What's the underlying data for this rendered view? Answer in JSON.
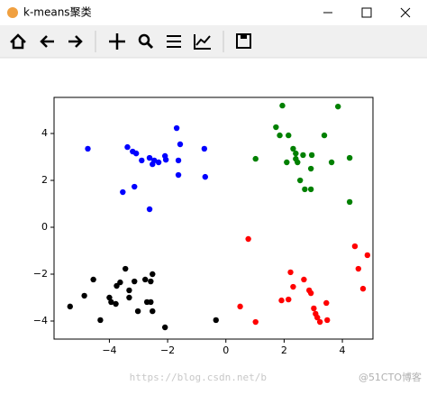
{
  "window": {
    "title": "k-means聚类"
  },
  "watermark": [
    "https://blog.csdn.net/b",
    "@51CTO博客"
  ],
  "chart_data": {
    "type": "scatter",
    "xlim": [
      -5.9,
      5.05
    ],
    "ylim": [
      -4.77,
      5.54
    ],
    "xticks": [
      {
        "value": -4,
        "label": "−4"
      },
      {
        "value": -2,
        "label": "−2"
      },
      0,
      2,
      4
    ],
    "yticks": [
      {
        "value": -4,
        "label": "−4"
      },
      {
        "value": -2,
        "label": "−2"
      },
      0,
      2,
      4
    ],
    "series": [
      {
        "color": "#0000ff",
        "x": [
          -4.74,
          -3.38,
          -3.2,
          -3.08,
          -2.89,
          -2.62,
          -2.46,
          -2.52,
          -2.31,
          -2.09,
          -2.06,
          -1.69,
          -1.57,
          -1.63,
          -1.63,
          -0.74,
          -0.71,
          -3.14,
          -3.54,
          -2.62
        ],
        "values": [
          3.35,
          3.42,
          3.23,
          3.15,
          2.85,
          2.96,
          2.85,
          2.69,
          2.77,
          3.04,
          2.88,
          4.23,
          3.54,
          2.85,
          2.23,
          3.35,
          2.15,
          1.73,
          1.5,
          0.77
        ]
      },
      {
        "color": "#008000",
        "x": [
          1.94,
          1.72,
          1.85,
          2.15,
          2.31,
          2.4,
          2.65,
          2.4,
          2.09,
          2.46,
          2.95,
          2.92,
          3.38,
          3.85,
          3.63,
          4.25,
          1.02,
          2.55,
          2.71,
          2.92,
          4.25
        ],
        "values": [
          5.19,
          4.27,
          3.92,
          3.92,
          3.35,
          3.15,
          3.08,
          2.92,
          2.77,
          2.77,
          3.08,
          2.5,
          3.92,
          5.15,
          2.77,
          2.96,
          2.92,
          2.0,
          1.62,
          1.62,
          1.08
        ]
      },
      {
        "color": "#ff0000",
        "x": [
          0.77,
          4.43,
          4.86,
          4.55,
          4.71,
          2.22,
          2.68,
          2.31,
          2.86,
          2.92,
          2.15,
          1.91,
          3.45,
          3.02,
          3.08,
          3.14,
          3.23,
          3.48,
          0.49,
          1.02
        ],
        "values": [
          -0.5,
          -0.81,
          -1.19,
          -1.77,
          -2.62,
          -1.92,
          -2.23,
          -2.54,
          -2.69,
          -2.81,
          -3.08,
          -3.12,
          -3.23,
          -3.46,
          -3.69,
          -3.85,
          -4.04,
          -3.96,
          -3.38,
          -4.04
        ]
      },
      {
        "color": "#000000",
        "x": [
          -5.35,
          -4.86,
          -4.55,
          -4.31,
          -4.0,
          -3.94,
          -3.78,
          -3.75,
          -3.63,
          -3.45,
          -3.32,
          -3.32,
          -3.14,
          -3.02,
          -2.77,
          -2.71,
          -2.58,
          -2.58,
          -2.52,
          -2.52,
          -2.09,
          -0.34
        ],
        "values": [
          -3.38,
          -2.92,
          -2.23,
          -3.96,
          -3.0,
          -3.19,
          -3.27,
          -2.5,
          -2.35,
          -1.77,
          -2.69,
          -3.0,
          -2.31,
          -3.58,
          -2.23,
          -3.19,
          -3.19,
          -2.31,
          -2.0,
          -3.58,
          -4.27,
          -3.96
        ]
      }
    ]
  }
}
